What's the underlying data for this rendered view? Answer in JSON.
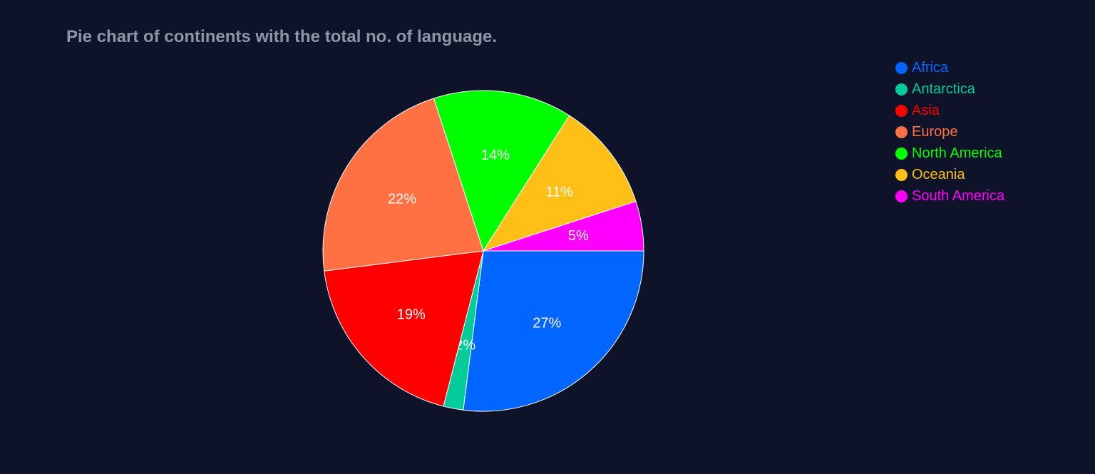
{
  "chart_data": {
    "type": "pie",
    "title": "Pie chart of continents with the total no. of language.",
    "labels": [
      "Africa",
      "Antarctica",
      "Asia",
      "Europe",
      "North America",
      "Oceania",
      "South America"
    ],
    "values": [
      27,
      2,
      19,
      22,
      14,
      11,
      5
    ],
    "text_labels": [
      "27%",
      "2%",
      "19%",
      "22%",
      "14%",
      "11%",
      "5%"
    ],
    "colors": [
      "#0066ff",
      "#00cc99",
      "#ff0000",
      "#ff7043",
      "#00ff00",
      "#ffbf17",
      "#ff00ff"
    ],
    "legend_position": "top-right",
    "start_angle": "3 o'clock",
    "direction": "clockwise",
    "text_color": "#ffffff",
    "slice_border_color": "#ffffff",
    "background_color": "#0f1329"
  }
}
